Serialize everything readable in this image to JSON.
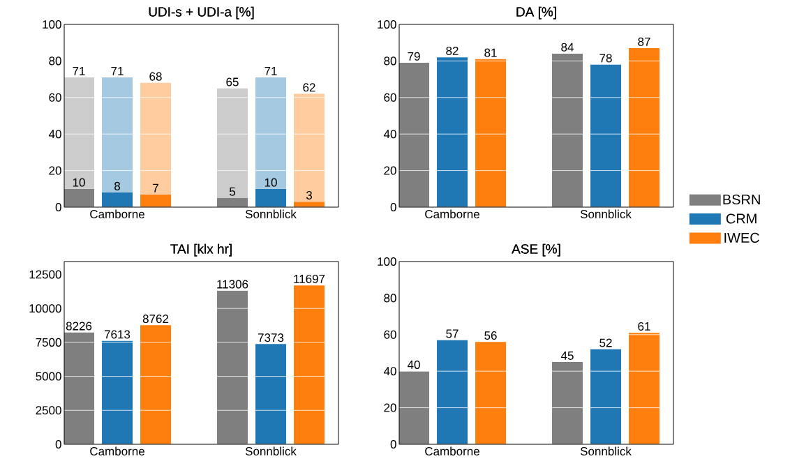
{
  "chart_data": [
    {
      "type": "bar",
      "title": "UDI-s + UDI-a [%]",
      "categories": [
        null,
        "Camborne",
        null,
        null,
        null,
        "Sonnblick",
        null
      ],
      "ylim": [
        0,
        100
      ],
      "yticks": [
        0,
        20,
        40,
        60,
        80,
        100
      ],
      "grid": "y",
      "stacked": true,
      "totals": [
        "71",
        "71",
        "68",
        null,
        "65",
        "71",
        "62"
      ],
      "series": [
        {
          "colors": [
            "#7f7f7f",
            "#1f77b4",
            "#ff7f0e",
            null,
            "#7f7f7f",
            "#1f77b4",
            "#ff7f0e"
          ],
          "values": [
            10,
            8,
            7,
            null,
            5,
            10,
            3
          ],
          "value_labels": [
            "10",
            "8",
            "7",
            null,
            "5",
            "10",
            "3"
          ]
        },
        {
          "colors": [
            "#cccccc",
            "#a5c9e1",
            "#ffcc9f",
            null,
            "#cccccc",
            "#a5c9e1",
            "#ffcc9f"
          ],
          "values": [
            61,
            63,
            61,
            null,
            60,
            61,
            59
          ]
        }
      ]
    },
    {
      "type": "bar",
      "title": "DA [%]",
      "categories": [
        "Camborne",
        "Sonnblick"
      ],
      "ylim": [
        0,
        100
      ],
      "yticks": [
        0,
        20,
        40,
        60,
        80,
        100
      ],
      "grid": "y",
      "data_labels": true,
      "legend": "right",
      "series": [
        {
          "name": "BSRN",
          "color": "#7f7f7f",
          "values": [
            79,
            84
          ]
        },
        {
          "name": "CRM",
          "color": "#1f77b4",
          "values": [
            82,
            78
          ]
        },
        {
          "name": "IWEC",
          "color": "#ff7f0e",
          "values": [
            81,
            87
          ]
        }
      ]
    },
    {
      "type": "bar",
      "title": "TAI [klx hr]",
      "categories": [
        "Camborne",
        "Sonnblick"
      ],
      "ylim": [
        0,
        13450
      ],
      "yticks": [
        0,
        2500,
        5000,
        7500,
        10000,
        12500
      ],
      "grid": "y",
      "data_labels": true,
      "series": [
        {
          "color": "#7f7f7f",
          "values": [
            8226,
            11306
          ]
        },
        {
          "color": "#1f77b4",
          "values": [
            7613,
            7373
          ]
        },
        {
          "color": "#ff7f0e",
          "values": [
            8762,
            11697
          ]
        }
      ]
    },
    {
      "type": "bar",
      "title": "ASE [%]",
      "categories": [
        "Camborne",
        "Sonnblick"
      ],
      "ylim": [
        0,
        100
      ],
      "yticks": [
        0,
        20,
        40,
        60,
        80,
        100
      ],
      "grid": "y",
      "data_labels": true,
      "series": [
        {
          "color": "#7f7f7f",
          "values": [
            40,
            45
          ]
        },
        {
          "color": "#1f77b4",
          "values": [
            57,
            52
          ]
        },
        {
          "color": "#ff7f0e",
          "values": [
            56,
            61
          ]
        }
      ]
    }
  ]
}
